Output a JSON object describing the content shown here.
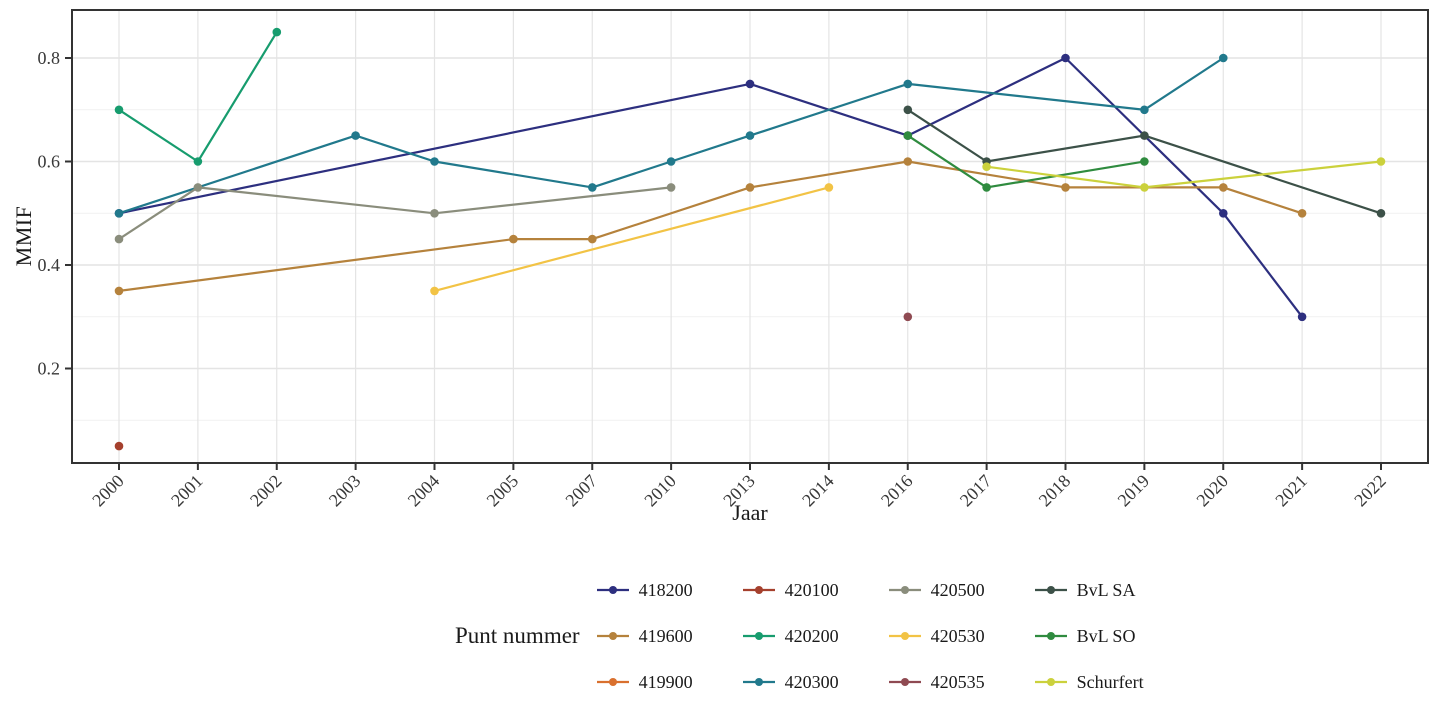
{
  "axis": {
    "x_title": "Jaar",
    "y_title": "MMIF"
  },
  "legend": {
    "title": "Punt nummer"
  },
  "chart_data": {
    "type": "line",
    "xlabel": "Jaar",
    "ylabel": "MMIF",
    "legend_title": "Punt nummer",
    "x_categories": [
      "2000",
      "2001",
      "2002",
      "2003",
      "2004",
      "2005",
      "2007",
      "2010",
      "2013",
      "2014",
      "2016",
      "2017",
      "2018",
      "2019",
      "2020",
      "2021",
      "2022"
    ],
    "y_tick_labels": [
      "0.2",
      "0.4",
      "0.6",
      "0.8"
    ],
    "y_major_ticks": [
      0.2,
      0.4,
      0.6,
      0.8
    ],
    "y_minor_ticks": [
      0.1,
      0.3,
      0.5,
      0.7
    ],
    "ylim": [
      0.017,
      0.893
    ],
    "grid": true,
    "legend_position": "bottom",
    "colors": {
      "grid_major": "#e4e4e4",
      "grid_minor": "#f1f1f1",
      "panel_border": "#333333",
      "tick": "#333333",
      "tick_label": "#383838"
    },
    "series": [
      {
        "name": "418200",
        "color": "#2d2f7f",
        "points": [
          [
            "2000",
            0.5
          ],
          [
            "2013",
            0.75
          ],
          [
            "2016",
            0.65
          ],
          [
            "2018",
            0.8
          ],
          [
            "2020",
            0.5
          ],
          [
            "2021",
            0.3
          ]
        ]
      },
      {
        "name": "419600",
        "color": "#b5823c",
        "points": [
          [
            "2000",
            0.35
          ],
          [
            "2005",
            0.45
          ],
          [
            "2007",
            0.45
          ],
          [
            "2013",
            0.55
          ],
          [
            "2016",
            0.6
          ],
          [
            "2018",
            0.55
          ],
          [
            "2020",
            0.55
          ],
          [
            "2021",
            0.5
          ]
        ]
      },
      {
        "name": "419900",
        "color": "#d9702e",
        "points": []
      },
      {
        "name": "420100",
        "color": "#a5402d",
        "points": [
          [
            "2000",
            0.05
          ]
        ]
      },
      {
        "name": "420200",
        "color": "#179c6e",
        "points": [
          [
            "2000",
            0.7
          ],
          [
            "2001",
            0.6
          ],
          [
            "2002",
            0.85
          ]
        ]
      },
      {
        "name": "420300",
        "color": "#21798c",
        "points": [
          [
            "2000",
            0.5
          ],
          [
            "2003",
            0.65
          ],
          [
            "2004",
            0.6
          ],
          [
            "2007",
            0.55
          ],
          [
            "2010",
            0.6
          ],
          [
            "2013",
            0.65
          ],
          [
            "2016",
            0.75
          ],
          [
            "2019",
            0.7
          ],
          [
            "2020",
            0.8
          ]
        ]
      },
      {
        "name": "420500",
        "color": "#8a8d7c",
        "points": [
          [
            "2000",
            0.45
          ],
          [
            "2001",
            0.55
          ],
          [
            "2004",
            0.5
          ],
          [
            "2010",
            0.55
          ]
        ]
      },
      {
        "name": "420530",
        "color": "#f2c345",
        "points": [
          [
            "2004",
            0.35
          ],
          [
            "2014",
            0.55
          ]
        ]
      },
      {
        "name": "420535",
        "color": "#8f4a52",
        "points": [
          [
            "2016",
            0.3
          ]
        ]
      },
      {
        "name": "BvL SA",
        "color": "#3c5148",
        "points": [
          [
            "2016",
            0.7
          ],
          [
            "2017",
            0.6
          ],
          [
            "2019",
            0.65
          ],
          [
            "2022",
            0.5
          ]
        ]
      },
      {
        "name": "BvL SO",
        "color": "#2f8b3f",
        "points": [
          [
            "2016",
            0.65
          ],
          [
            "2017",
            0.55
          ],
          [
            "2019",
            0.6
          ]
        ]
      },
      {
        "name": "Schurfert",
        "color": "#cbd13c",
        "points": [
          [
            "2017",
            0.59
          ],
          [
            "2019",
            0.55
          ],
          [
            "2022",
            0.6
          ]
        ]
      }
    ]
  }
}
